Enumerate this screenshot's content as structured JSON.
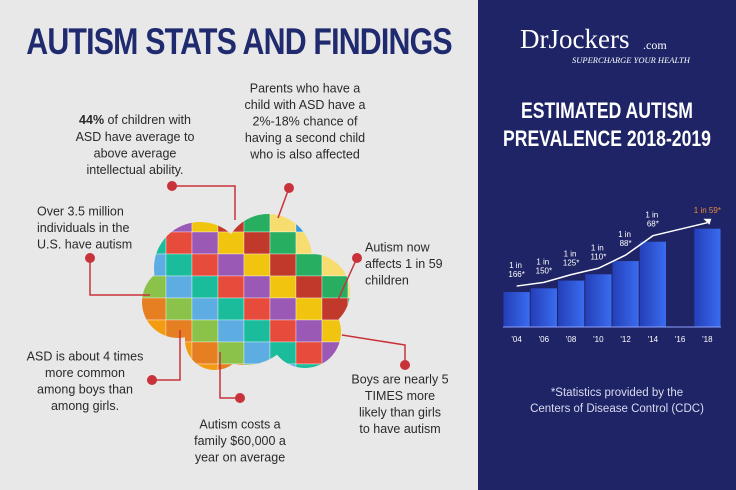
{
  "header": {
    "title": "AUTISM STATS AND FINDINGS"
  },
  "brand": {
    "name": "DrJockers",
    "domain": ".com",
    "tagline": "SUPERCHARGE YOUR HEALTH"
  },
  "callouts": [
    {
      "bold": "44%",
      "lines": [
        " of children with",
        "ASD have average to",
        "above average",
        "intellectual ability."
      ]
    },
    {
      "lines": [
        "Parents who have a",
        "child with ASD have a",
        "2%-18% chance of",
        "having a second child",
        "who is also affected"
      ]
    },
    {
      "lines": [
        "Over 3.5 million",
        "individuals in the",
        "U.S. have autism"
      ]
    },
    {
      "lines": [
        "Autism now",
        "affects 1 in 59",
        "children"
      ]
    },
    {
      "lines": [
        "ASD is about 4 times",
        "more common",
        "among boys than",
        "among girls."
      ]
    },
    {
      "lines": [
        "Autism costs a",
        "family $60,000 a",
        "year on average"
      ]
    },
    {
      "lines": [
        "Boys are nearly 5",
        "TIMES more",
        "likely than girls",
        "to have autism"
      ]
    }
  ],
  "chart_data": {
    "type": "bar",
    "title": [
      "ESTIMATED AUTISM",
      "PREVALENCE 2018-2019"
    ],
    "categories": [
      "'04",
      "'06",
      "'08",
      "'10",
      "'12",
      "'14",
      "'16",
      "'18"
    ],
    "values": [
      166,
      150,
      125,
      110,
      88,
      68,
      null,
      59
    ],
    "value_labels": [
      "1 in 166*",
      "1 in 150*",
      "1 in 125*",
      "1 in 110*",
      "1 in 88*",
      "1 in 68*",
      null,
      "1 in 59*"
    ],
    "color": "#2f5de0",
    "highlight_color": "#f08a3a",
    "footnote": [
      "*Statistics provided by the",
      "Centers of Disease Control (CDC)"
    ]
  }
}
